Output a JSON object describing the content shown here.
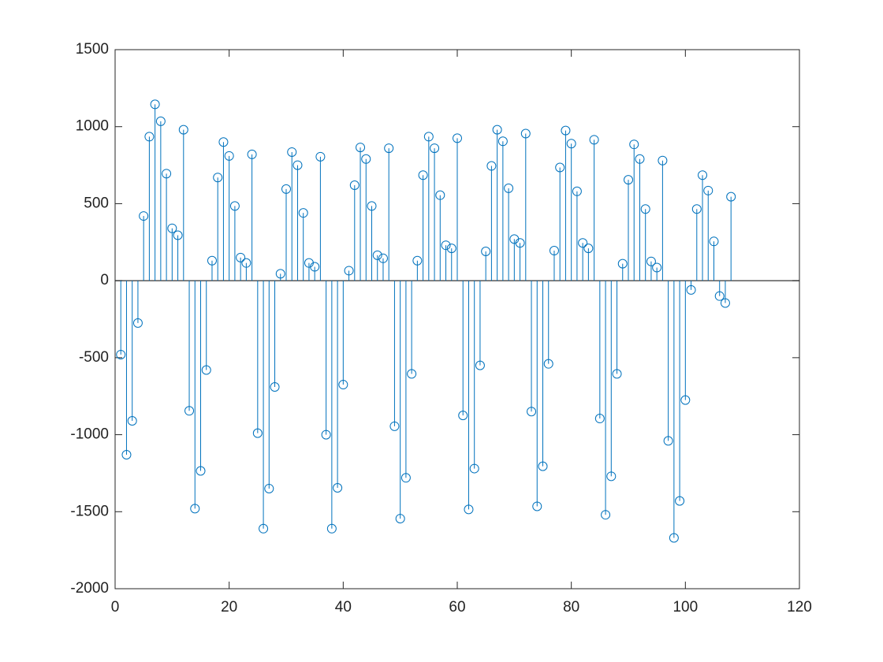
{
  "chart_data": {
    "type": "stem",
    "color": "#0072BD",
    "box": true,
    "xlim": [
      0,
      120
    ],
    "xticks": [
      0,
      20,
      40,
      60,
      80,
      100,
      120
    ],
    "ylim": [
      -2000,
      1500
    ],
    "yticks": [
      -2000,
      -1500,
      -1000,
      -500,
      0,
      500,
      1000,
      1500
    ],
    "x": [
      1,
      2,
      3,
      4,
      5,
      6,
      7,
      8,
      9,
      10,
      11,
      12,
      13,
      14,
      15,
      16,
      17,
      18,
      19,
      20,
      21,
      22,
      23,
      24,
      25,
      26,
      27,
      28,
      29,
      30,
      31,
      32,
      33,
      34,
      35,
      36,
      37,
      38,
      39,
      40,
      41,
      42,
      43,
      44,
      45,
      46,
      47,
      48,
      49,
      50,
      51,
      52,
      53,
      54,
      55,
      56,
      57,
      58,
      59,
      60,
      61,
      62,
      63,
      64,
      65,
      66,
      67,
      68,
      69,
      70,
      71,
      72,
      73,
      74,
      75,
      76,
      77,
      78,
      79,
      80,
      81,
      82,
      83,
      84,
      85,
      86,
      87,
      88,
      89,
      90,
      91,
      92,
      93,
      94,
      95,
      96,
      97,
      98,
      99,
      100,
      101,
      102,
      103,
      104,
      105,
      106,
      107,
      108
    ],
    "values": [
      -480,
      -1130,
      -910,
      -275,
      420,
      935,
      1145,
      1035,
      695,
      340,
      295,
      980,
      -845,
      -1480,
      -1235,
      -580,
      130,
      670,
      900,
      810,
      485,
      150,
      115,
      820,
      -990,
      -1610,
      -1350,
      -690,
      45,
      595,
      835,
      750,
      440,
      115,
      90,
      805,
      -1000,
      -1610,
      -1345,
      -675,
      65,
      620,
      865,
      790,
      485,
      165,
      145,
      860,
      -945,
      -1545,
      -1280,
      -605,
      130,
      685,
      935,
      860,
      555,
      230,
      210,
      925,
      -875,
      -1485,
      -1220,
      -550,
      190,
      745,
      980,
      905,
      600,
      270,
      245,
      955,
      -850,
      -1465,
      -1205,
      -540,
      195,
      735,
      975,
      890,
      580,
      245,
      210,
      915,
      -895,
      -1520,
      -1270,
      -605,
      110,
      655,
      885,
      790,
      465,
      125,
      85,
      780,
      -1040,
      -1670,
      -1430,
      -775,
      -60,
      465,
      685,
      585,
      255,
      -100,
      -145,
      545
    ]
  }
}
